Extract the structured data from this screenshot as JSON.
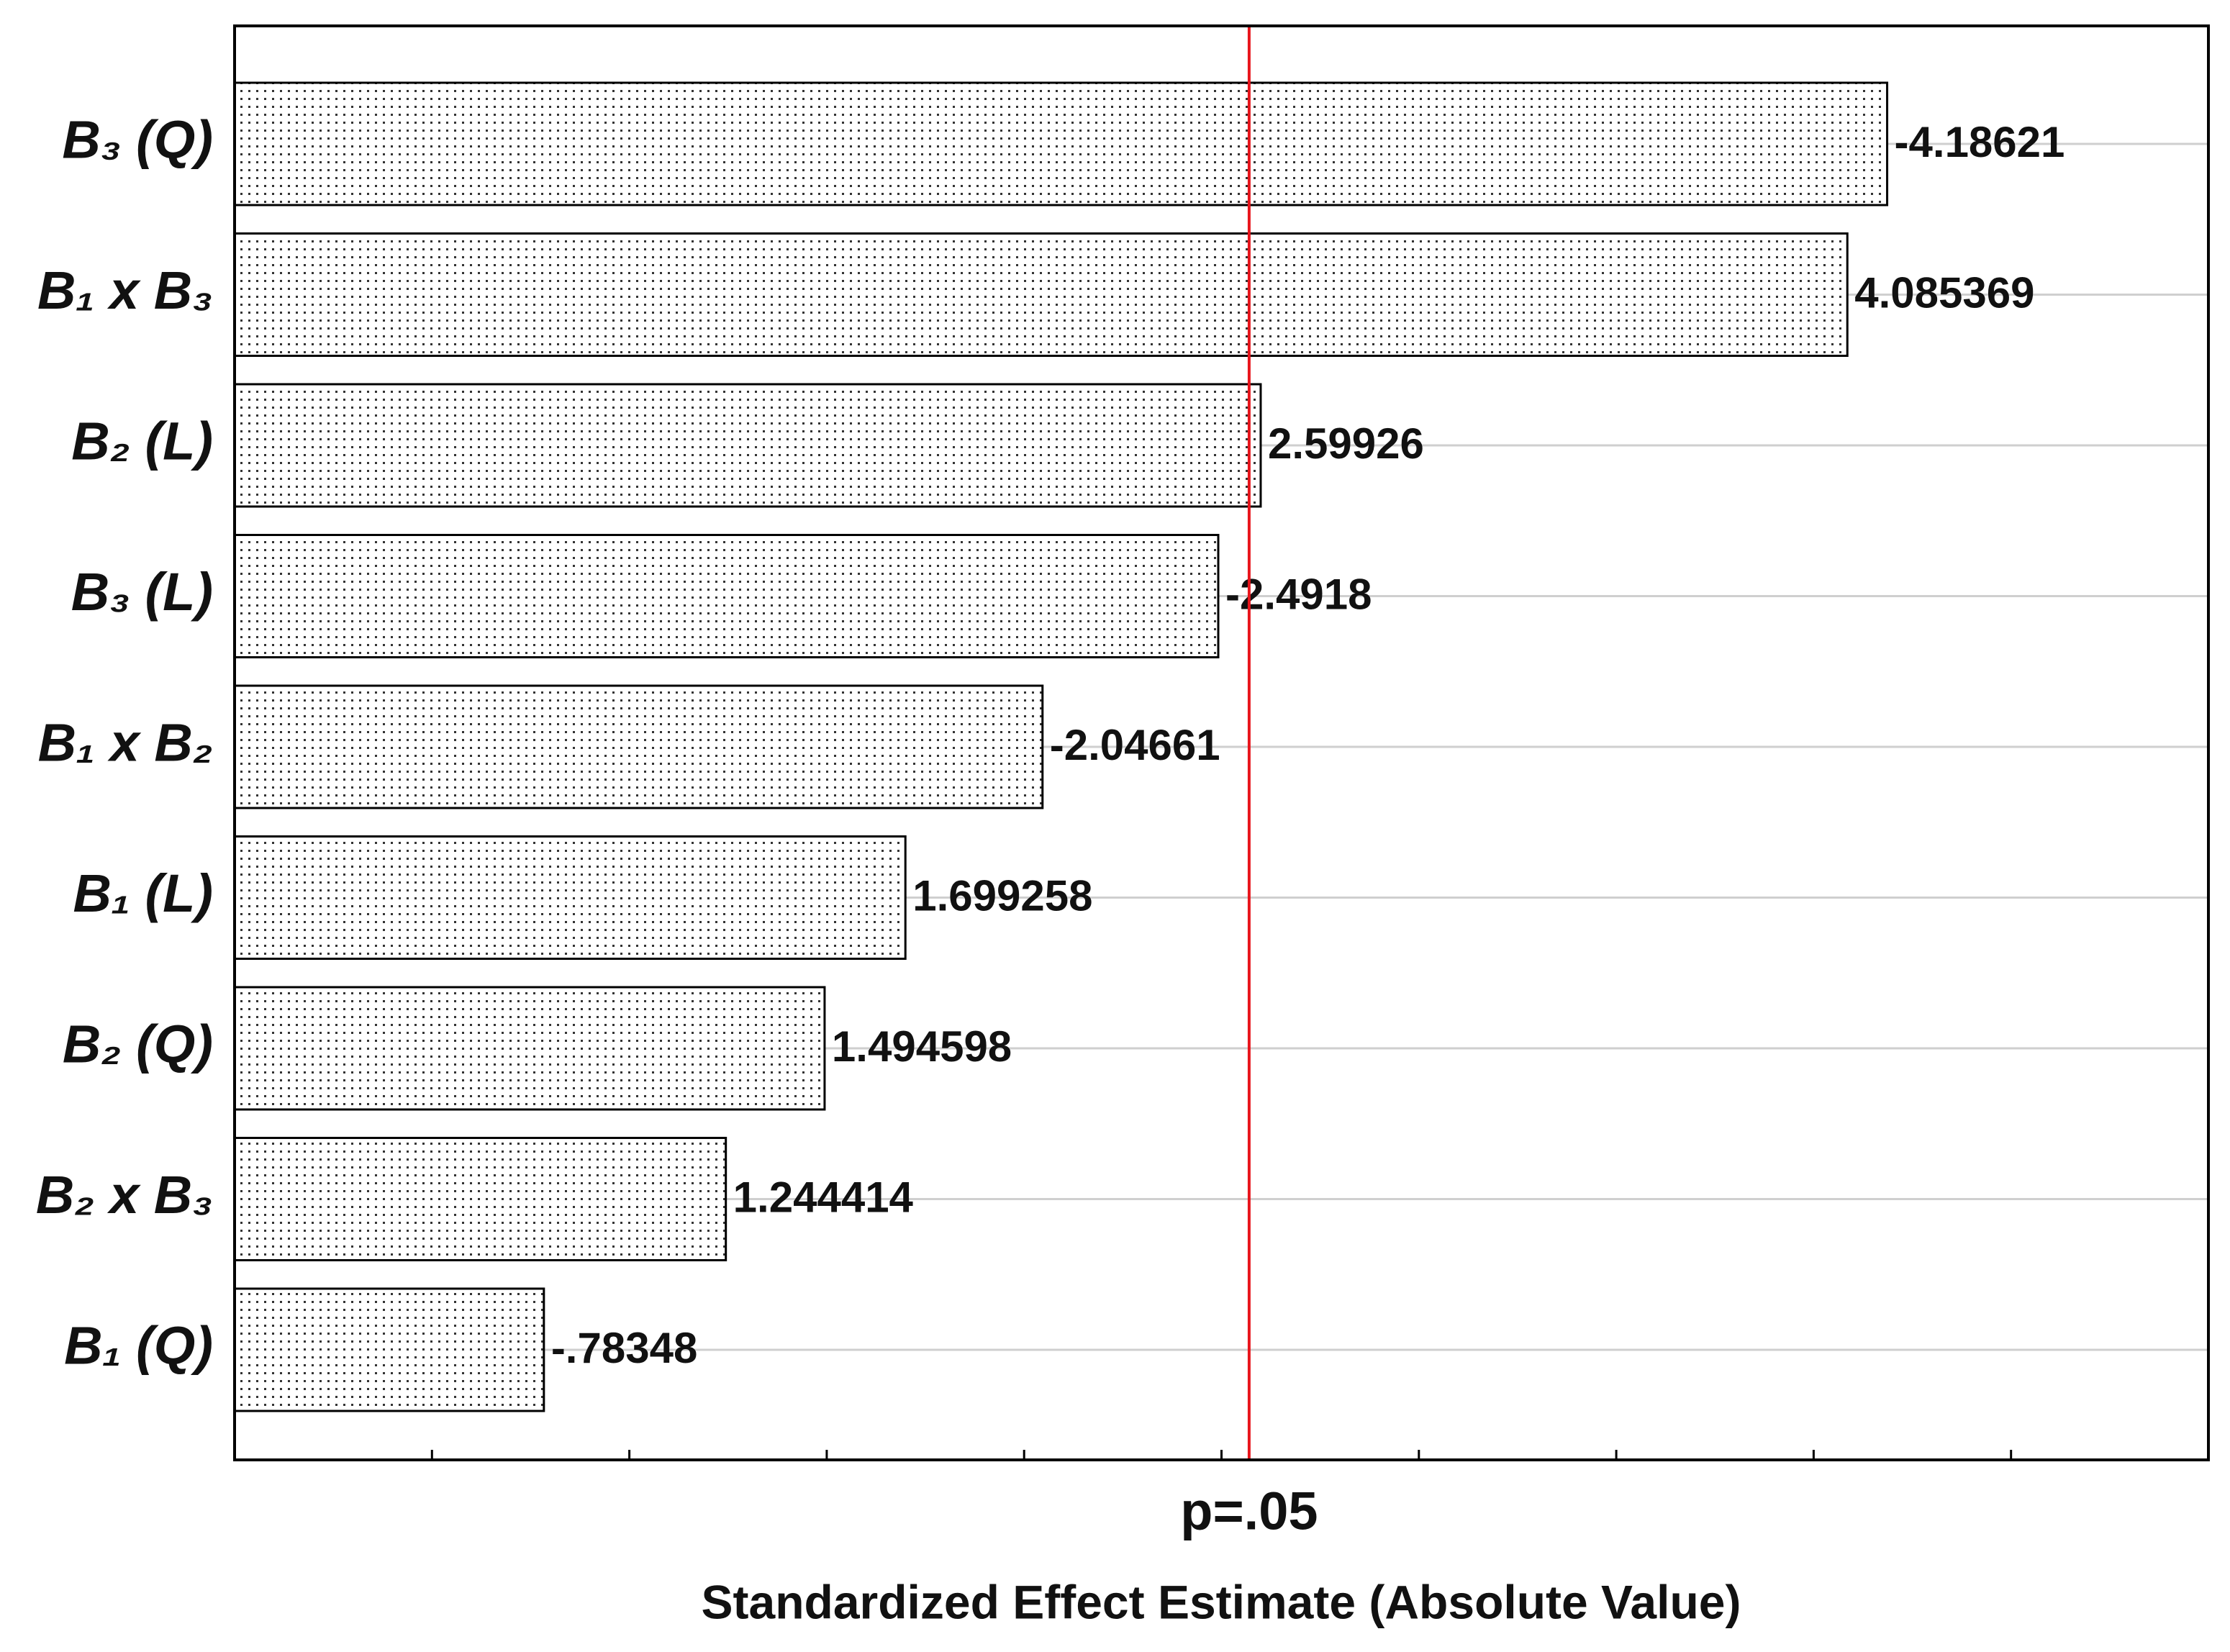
{
  "chart_data": {
    "type": "bar",
    "orientation": "horizontal",
    "categories": [
      "B₃ (Q)",
      "B₁ x B₃",
      "B₂ (L)",
      "B₃ (L)",
      "B₁ x B₂",
      "B₁ (L)",
      "B₂ (Q)",
      "B₂ x B₃",
      "B₁ (Q)"
    ],
    "values": [
      4.18621,
      4.085369,
      2.59926,
      2.4918,
      2.04661,
      1.699258,
      1.494598,
      1.244414,
      0.78348
    ],
    "value_labels": [
      "-4.18621",
      "4.085369",
      "2.59926",
      "-2.4918",
      "-2.04661",
      "1.699258",
      "1.494598",
      "1.244414",
      "-.78348"
    ],
    "color": "#ffffff",
    "xlabel": "Standardized Effect Estimate (Absolute Value)",
    "xlim": [
      0,
      5
    ],
    "xticks": [
      0,
      0.5,
      1,
      1.5,
      2,
      2.5,
      3,
      3.5,
      4,
      4.5,
      5
    ],
    "grid": true,
    "reference_line": {
      "value": 2.57,
      "label": "p=.05",
      "color": "#e8141b"
    }
  }
}
